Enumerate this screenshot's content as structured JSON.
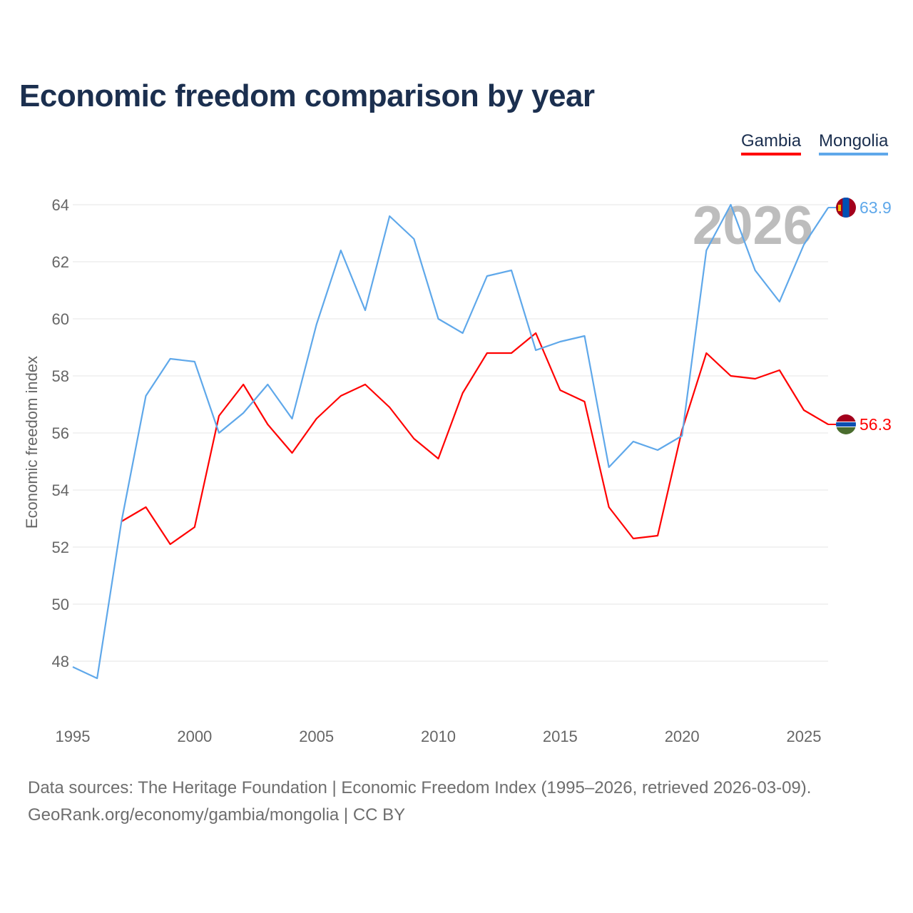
{
  "chart_data": {
    "type": "line",
    "title": "Economic freedom comparison by year",
    "ylabel": "Economic freedom index",
    "xlabel": "",
    "ylim": [
      46,
      64.5
    ],
    "xlim": [
      1995,
      2026
    ],
    "yticks": [
      48,
      50,
      52,
      54,
      56,
      58,
      60,
      62,
      64
    ],
    "xticks": [
      1995,
      2000,
      2005,
      2010,
      2015,
      2020,
      2025
    ],
    "grid": true,
    "legend_placement": "top-right",
    "current_year_label": "2026",
    "series": [
      {
        "name": "Gambia",
        "color": "#ff0000",
        "end_label": "56.3",
        "flag": "gambia-flag-icon",
        "x": [
          1997,
          1998,
          1999,
          2000,
          2001,
          2002,
          2003,
          2004,
          2005,
          2006,
          2007,
          2008,
          2009,
          2010,
          2011,
          2012,
          2013,
          2014,
          2015,
          2016,
          2017,
          2018,
          2019,
          2020,
          2021,
          2022,
          2023,
          2024,
          2025,
          2026
        ],
        "values": [
          52.9,
          53.4,
          52.1,
          52.7,
          56.6,
          57.7,
          56.3,
          55.3,
          56.5,
          57.3,
          57.7,
          56.9,
          55.8,
          55.1,
          57.4,
          58.8,
          58.8,
          59.5,
          57.5,
          57.1,
          53.4,
          52.3,
          52.4,
          56.1,
          58.8,
          58.0,
          57.9,
          58.2,
          56.8,
          56.3
        ]
      },
      {
        "name": "Mongolia",
        "color": "#5fa8ea",
        "end_label": "63.9",
        "flag": "mongolia-flag-icon",
        "x": [
          1995,
          1996,
          1997,
          1998,
          1999,
          2000,
          2001,
          2002,
          2003,
          2004,
          2005,
          2006,
          2007,
          2008,
          2009,
          2010,
          2011,
          2012,
          2013,
          2014,
          2015,
          2016,
          2017,
          2018,
          2019,
          2020,
          2021,
          2022,
          2023,
          2024,
          2025,
          2026
        ],
        "values": [
          47.8,
          47.4,
          52.9,
          57.3,
          58.6,
          58.5,
          56.0,
          56.7,
          57.7,
          56.5,
          59.8,
          62.4,
          60.3,
          63.6,
          62.8,
          60.0,
          59.5,
          61.5,
          61.7,
          58.9,
          59.2,
          59.4,
          54.8,
          55.7,
          55.4,
          55.9,
          62.4,
          64.0,
          61.7,
          60.6,
          62.6,
          63.9
        ]
      }
    ]
  },
  "footer": {
    "line1": "Data sources: The Heritage Foundation | Economic Freedom Index (1995–2026, retrieved 2026-03-09).",
    "line2": "GeoRank.org/economy/gambia/mongolia | CC BY"
  }
}
